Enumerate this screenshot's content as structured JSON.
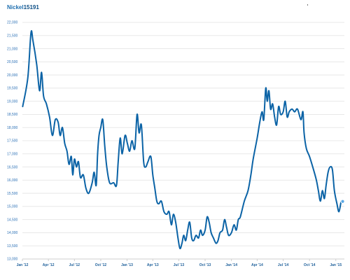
{
  "header": {
    "instrument": "Nickel",
    "price": "15191"
  },
  "chart_data": {
    "type": "line",
    "title": "",
    "xlabel": "",
    "ylabel": "",
    "ylim": [
      13000,
      22000
    ],
    "yticks": [
      13000,
      13500,
      14000,
      14500,
      15000,
      15500,
      16000,
      16500,
      17000,
      17500,
      18000,
      18500,
      19000,
      19500,
      20000,
      20500,
      21000,
      21500,
      22000
    ],
    "ytick_labels": [
      "13,000",
      "13,500",
      "14,000",
      "14,500",
      "15,000",
      "15,500",
      "16,000",
      "16,500",
      "17,000",
      "17,500",
      "18,000",
      "18,500",
      "19,000",
      "19,500",
      "20,000",
      "20,500",
      "21,000",
      "21,500",
      "22,000"
    ],
    "xticks": [
      "Jan '12",
      "Apr '12",
      "Jul '12",
      "Oct '12",
      "Jan '13",
      "Apr '13",
      "Jul '13",
      "Oct '13",
      "Jan '14",
      "Apr '14",
      "Jul '14",
      "Oct '14",
      "Jan '15"
    ],
    "x_range": [
      "2012-01-01",
      "2015-01-31"
    ],
    "grid": true,
    "legend": "none",
    "colors": {
      "series": "#0b63a6",
      "marker": "#5aa9e6"
    },
    "series": [
      {
        "points": [
          [
            "2012-01-02",
            18800
          ],
          [
            "2012-01-20",
            19900
          ],
          [
            "2012-01-31",
            21600
          ],
          [
            "2012-02-07",
            21300
          ],
          [
            "2012-02-20",
            20400
          ],
          [
            "2012-03-01",
            19400
          ],
          [
            "2012-03-08",
            20100
          ],
          [
            "2012-03-15",
            19200
          ],
          [
            "2012-03-25",
            18900
          ],
          [
            "2012-04-05",
            18400
          ],
          [
            "2012-04-15",
            17700
          ],
          [
            "2012-04-25",
            18300
          ],
          [
            "2012-05-05",
            18200
          ],
          [
            "2012-05-12",
            17700
          ],
          [
            "2012-05-20",
            18000
          ],
          [
            "2012-05-28",
            17400
          ],
          [
            "2012-06-05",
            17100
          ],
          [
            "2012-06-12",
            16600
          ],
          [
            "2012-06-20",
            16900
          ],
          [
            "2012-06-25",
            16200
          ],
          [
            "2012-07-01",
            16800
          ],
          [
            "2012-07-08",
            16500
          ],
          [
            "2012-07-15",
            16700
          ],
          [
            "2012-07-22",
            16100
          ],
          [
            "2012-08-01",
            16200
          ],
          [
            "2012-08-10",
            15700
          ],
          [
            "2012-08-20",
            15500
          ],
          [
            "2012-09-01",
            15900
          ],
          [
            "2012-09-08",
            16300
          ],
          [
            "2012-09-15",
            15800
          ],
          [
            "2012-09-20",
            17000
          ],
          [
            "2012-09-25",
            17700
          ],
          [
            "2012-10-01",
            18000
          ],
          [
            "2012-10-08",
            18300
          ],
          [
            "2012-10-15",
            17300
          ],
          [
            "2012-10-22",
            16500
          ],
          [
            "2012-11-01",
            15900
          ],
          [
            "2012-11-15",
            15900
          ],
          [
            "2012-11-25",
            15800
          ],
          [
            "2012-12-01",
            16700
          ],
          [
            "2012-12-08",
            17600
          ],
          [
            "2012-12-15",
            17000
          ],
          [
            "2012-12-25",
            17700
          ],
          [
            "2013-01-02",
            17400
          ],
          [
            "2013-01-10",
            17100
          ],
          [
            "2013-01-18",
            17500
          ],
          [
            "2013-01-28",
            17200
          ],
          [
            "2013-02-05",
            18500
          ],
          [
            "2013-02-12",
            17800
          ],
          [
            "2013-02-20",
            18100
          ],
          [
            "2013-02-28",
            16700
          ],
          [
            "2013-03-07",
            16500
          ],
          [
            "2013-03-15",
            16700
          ],
          [
            "2013-03-25",
            16900
          ],
          [
            "2013-04-01",
            16200
          ],
          [
            "2013-04-08",
            15700
          ],
          [
            "2013-04-15",
            15200
          ],
          [
            "2013-04-22",
            15100
          ],
          [
            "2013-05-01",
            15200
          ],
          [
            "2013-05-10",
            14800
          ],
          [
            "2013-05-20",
            14700
          ],
          [
            "2013-05-28",
            14800
          ],
          [
            "2013-06-05",
            14300
          ],
          [
            "2013-06-12",
            14700
          ],
          [
            "2013-06-20",
            14400
          ],
          [
            "2013-06-28",
            13800
          ],
          [
            "2013-07-05",
            13400
          ],
          [
            "2013-07-12",
            13600
          ],
          [
            "2013-07-18",
            13900
          ],
          [
            "2013-07-25",
            13700
          ],
          [
            "2013-08-01",
            14100
          ],
          [
            "2013-08-08",
            14400
          ],
          [
            "2013-08-15",
            13800
          ],
          [
            "2013-08-22",
            13700
          ],
          [
            "2013-08-30",
            13900
          ],
          [
            "2013-09-08",
            13800
          ],
          [
            "2013-09-15",
            14100
          ],
          [
            "2013-09-22",
            13900
          ],
          [
            "2013-10-01",
            14100
          ],
          [
            "2013-10-08",
            14600
          ],
          [
            "2013-10-15",
            14400
          ],
          [
            "2013-10-22",
            14000
          ],
          [
            "2013-10-30",
            13800
          ],
          [
            "2013-11-08",
            13600
          ],
          [
            "2013-11-15",
            13700
          ],
          [
            "2013-11-22",
            14000
          ],
          [
            "2013-12-01",
            14100
          ],
          [
            "2013-12-08",
            14500
          ],
          [
            "2013-12-15",
            14200
          ],
          [
            "2013-12-22",
            13900
          ],
          [
            "2014-01-01",
            14000
          ],
          [
            "2014-01-10",
            14300
          ],
          [
            "2014-01-18",
            14100
          ],
          [
            "2014-01-25",
            14500
          ],
          [
            "2014-02-01",
            14600
          ],
          [
            "2014-02-15",
            15200
          ],
          [
            "2014-02-28",
            15600
          ],
          [
            "2014-03-10",
            16200
          ],
          [
            "2014-03-18",
            16800
          ],
          [
            "2014-04-01",
            17600
          ],
          [
            "2014-04-10",
            18200
          ],
          [
            "2014-04-18",
            18600
          ],
          [
            "2014-04-24",
            18300
          ],
          [
            "2014-05-01",
            19500
          ],
          [
            "2014-05-06",
            19000
          ],
          [
            "2014-05-12",
            19400
          ],
          [
            "2014-05-18",
            18700
          ],
          [
            "2014-05-25",
            18900
          ],
          [
            "2014-06-01",
            18400
          ],
          [
            "2014-06-08",
            18100
          ],
          [
            "2014-06-15",
            18800
          ],
          [
            "2014-06-22",
            18500
          ],
          [
            "2014-07-01",
            18600
          ],
          [
            "2014-07-08",
            19000
          ],
          [
            "2014-07-15",
            18400
          ],
          [
            "2014-07-22",
            18600
          ],
          [
            "2014-08-01",
            18700
          ],
          [
            "2014-08-10",
            18600
          ],
          [
            "2014-08-20",
            18700
          ],
          [
            "2014-09-01",
            18300
          ],
          [
            "2014-09-08",
            18600
          ],
          [
            "2014-09-12",
            17800
          ],
          [
            "2014-09-20",
            17200
          ],
          [
            "2014-10-01",
            16900
          ],
          [
            "2014-10-15",
            16400
          ],
          [
            "2014-10-25",
            16000
          ],
          [
            "2014-11-01",
            15600
          ],
          [
            "2014-11-08",
            15200
          ],
          [
            "2014-11-15",
            15600
          ],
          [
            "2014-11-22",
            15300
          ],
          [
            "2014-11-28",
            15800
          ],
          [
            "2014-12-05",
            16300
          ],
          [
            "2014-12-12",
            16500
          ],
          [
            "2014-12-20",
            16400
          ],
          [
            "2014-12-27",
            15600
          ],
          [
            "2015-01-05",
            15100
          ],
          [
            "2015-01-12",
            14800
          ],
          [
            "2015-01-20",
            15200
          ],
          [
            "2015-01-25",
            15191
          ]
        ]
      }
    ]
  }
}
